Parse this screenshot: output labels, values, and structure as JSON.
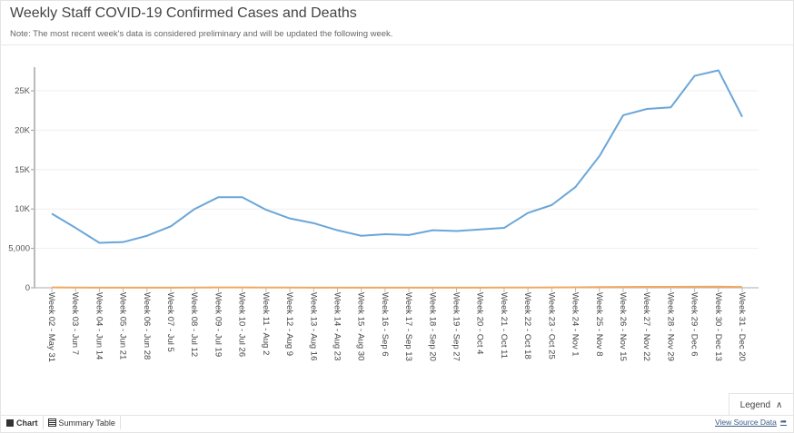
{
  "header": {
    "title": "Weekly Staff COVID-19 Confirmed Cases and Deaths",
    "note": "Note: The most recent week's data is considered preliminary and will be updated the following week."
  },
  "chart_data": {
    "type": "line",
    "title": "Weekly Staff COVID-19 Confirmed Cases and Deaths",
    "categories": [
      "Week 02 - May 31",
      "Week 03 - Jun 7",
      "Week 04 - Jun 14",
      "Week 05 - Jun 21",
      "Week 06 - Jun 28",
      "Week 07 - Jul 5",
      "Week 08 - Jul 12",
      "Week 09 - Jul 19",
      "Week 10 - Jul 26",
      "Week 11 - Aug 2",
      "Week 12 - Aug 9",
      "Week 13 - Aug 16",
      "Week 14 - Aug 23",
      "Week 15 - Aug 30",
      "Week 16 - Sep 6",
      "Week 17 - Sep 13",
      "Week 18 - Sep 20",
      "Week 19 - Sep 27",
      "Week 20 - Oct 4",
      "Week 21 - Oct 11",
      "Week 22 - Oct 18",
      "Week 23 - Oct 25",
      "Week 24 - Nov 1",
      "Week 25 - Nov 8",
      "Week 26 - Nov 15",
      "Week 27 - Nov 22",
      "Week 28 - Nov 29",
      "Week 29 - Dec 6",
      "Week 30 - Dec 13",
      "Week 31 - Dec 20"
    ],
    "series": [
      {
        "name": "Confirmed Cases",
        "color": "#6aa6d9",
        "values": [
          9400,
          7600,
          5700,
          5800,
          6600,
          7800,
          10000,
          11500,
          11500,
          9900,
          8800,
          8200,
          7300,
          6600,
          6800,
          6700,
          7300,
          7200,
          7400,
          7600,
          9500,
          10500,
          12800,
          16700,
          21900,
          22700,
          22900,
          26900,
          27600,
          21700
        ]
      },
      {
        "name": "Deaths",
        "color": "#f0a860",
        "values": [
          40,
          30,
          20,
          15,
          15,
          20,
          30,
          40,
          40,
          30,
          25,
          20,
          20,
          15,
          15,
          15,
          20,
          20,
          20,
          25,
          30,
          40,
          60,
          80,
          100,
          110,
          120,
          130,
          140,
          100
        ]
      }
    ],
    "yticks": [
      0,
      5000,
      10000,
      15000,
      20000,
      25000
    ],
    "ytick_labels": [
      "0",
      "5,000",
      "10K",
      "15K",
      "20K",
      "25K"
    ],
    "ylim": [
      0,
      28000
    ],
    "grid": true
  },
  "legend": {
    "label": "Legend"
  },
  "footer": {
    "tabs": [
      "Chart",
      "Summary Table"
    ],
    "source_link": "View Source Data"
  }
}
